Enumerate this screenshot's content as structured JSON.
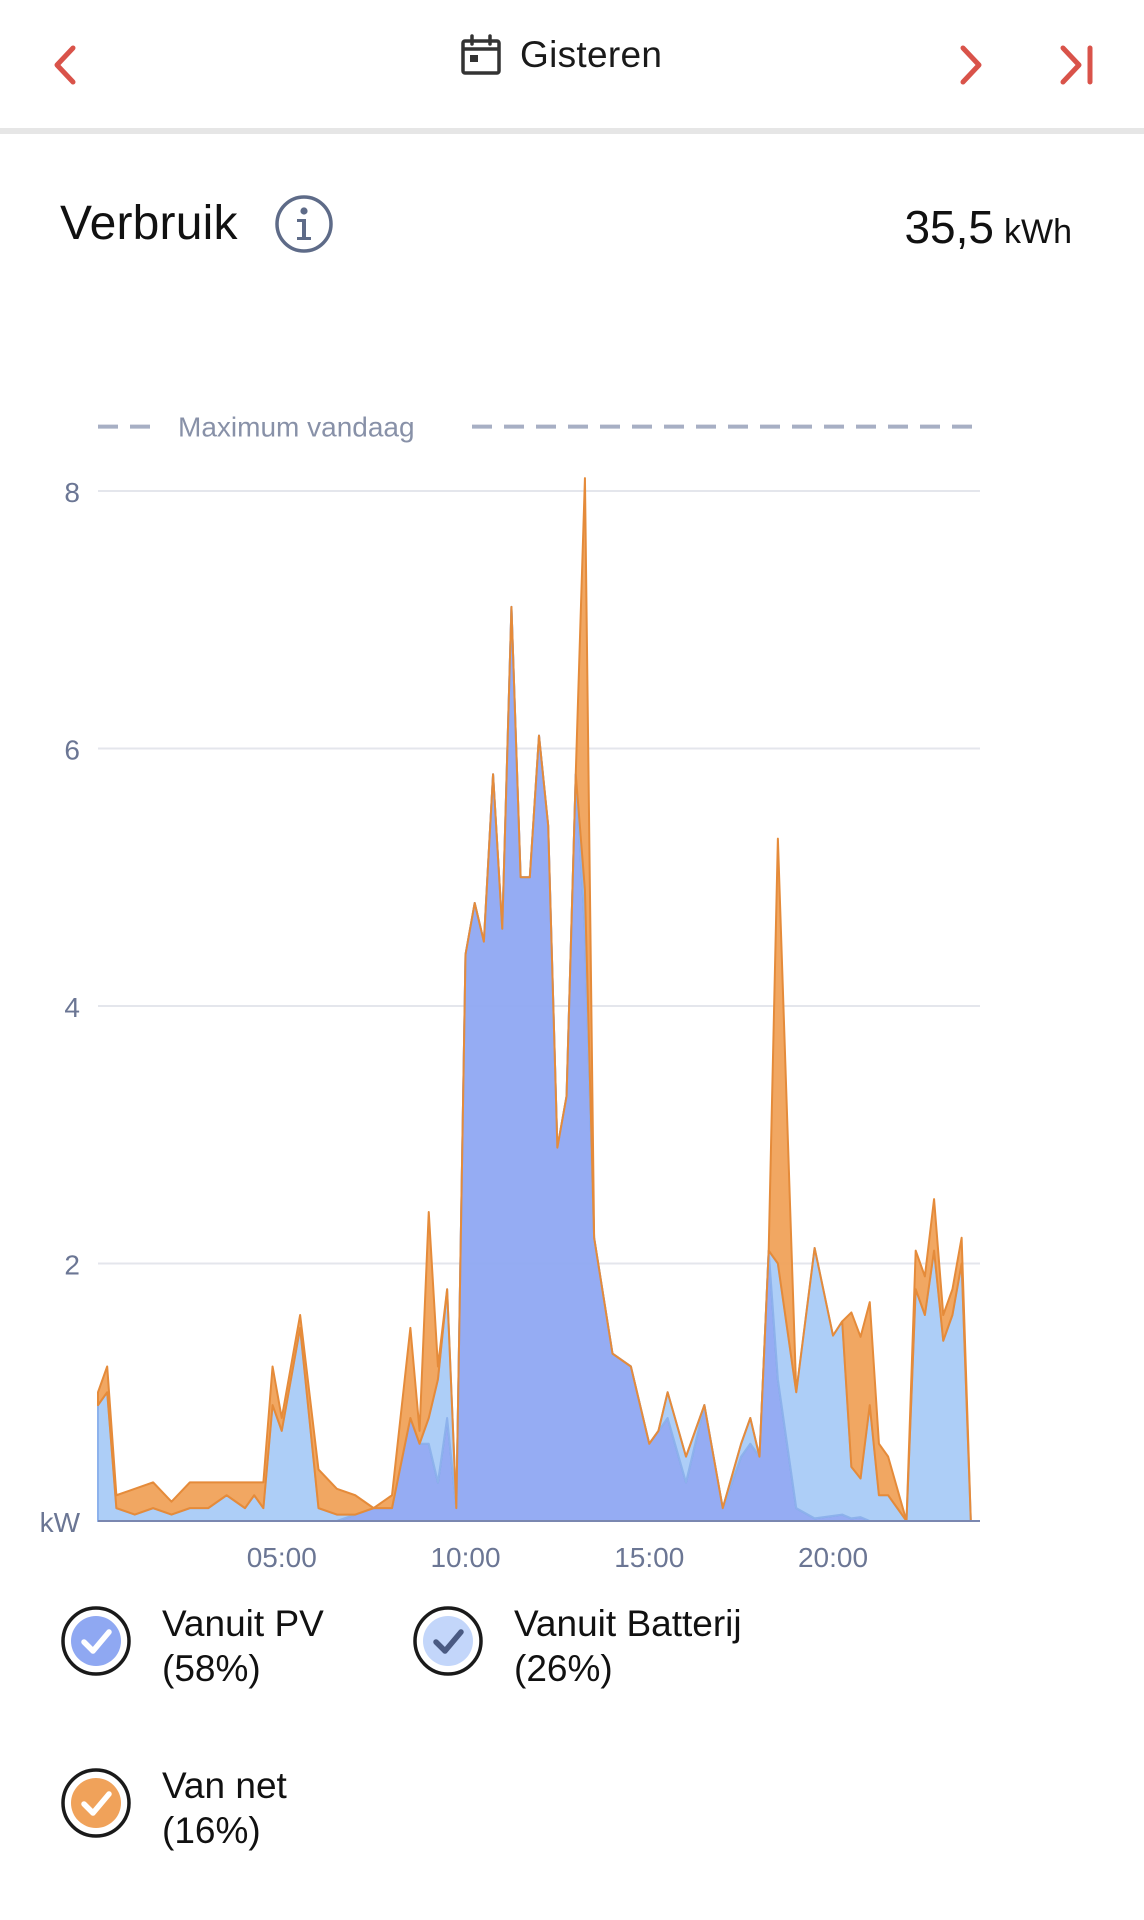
{
  "header": {
    "date_label": "Gisteren",
    "accent_color": "#d9534a"
  },
  "summary": {
    "title": "Verbruik",
    "total_value": "35,5",
    "total_unit": "kWh"
  },
  "icons": {
    "prev": "chevron-left-icon",
    "next": "chevron-right-icon",
    "last": "skip-to-last-icon",
    "calendar": "calendar-icon",
    "info": "info-icon",
    "check": "checkmark-icon"
  },
  "chart_data": {
    "type": "area",
    "title": "",
    "xlabel": "",
    "ylabel": "kW",
    "xlim": [
      0,
      24
    ],
    "ylim": [
      0,
      8
    ],
    "x_ticks": [
      {
        "value": 5,
        "label": "05:00"
      },
      {
        "value": 10,
        "label": "10:00"
      },
      {
        "value": 15,
        "label": "15:00"
      },
      {
        "value": 20,
        "label": "20:00"
      }
    ],
    "y_ticks": [
      {
        "value": 0,
        "label": "kW"
      },
      {
        "value": 2,
        "label": "2"
      },
      {
        "value": 4,
        "label": "4"
      },
      {
        "value": 6,
        "label": "6"
      },
      {
        "value": 8,
        "label": "8"
      }
    ],
    "grid": true,
    "reference_line": {
      "label": "Maximum vandaag",
      "value": 8.5
    },
    "x": [
      0,
      0.25,
      0.5,
      1,
      1.5,
      2,
      2.5,
      3,
      3.5,
      4,
      4.25,
      4.5,
      4.75,
      5,
      5.5,
      6,
      6.5,
      7,
      7.5,
      8,
      8.5,
      8.75,
      9,
      9.25,
      9.5,
      9.75,
      10,
      10.25,
      10.5,
      10.75,
      11,
      11.25,
      11.5,
      11.75,
      12,
      12.25,
      12.5,
      12.75,
      13,
      13.25,
      13.5,
      14,
      14.5,
      15,
      15.25,
      15.5,
      16,
      16.5,
      17,
      17.5,
      17.75,
      18,
      18.25,
      18.5,
      19,
      19.5,
      20,
      20.25,
      20.5,
      20.75,
      21,
      21.25,
      21.5,
      22,
      22.25,
      22.5,
      22.75,
      23,
      23.25,
      23.5,
      23.75
    ],
    "series": [
      {
        "name": "Vanuit PV",
        "percent": "(58%)",
        "color": "#8fa8f2",
        "values": [
          0,
          0,
          0,
          0,
          0,
          0,
          0,
          0,
          0,
          0,
          0,
          0,
          0,
          0,
          0,
          0,
          0,
          0.05,
          0.1,
          0.1,
          0.8,
          0.6,
          0.6,
          0.3,
          0.8,
          0.1,
          4.4,
          4.8,
          4.5,
          5.8,
          4.6,
          7.1,
          5.0,
          5.0,
          6.1,
          5.4,
          2.9,
          3.3,
          5.8,
          4.6,
          2.2,
          1.3,
          1.2,
          0.6,
          0.7,
          0.8,
          0.3,
          0.9,
          0.1,
          0.5,
          0.6,
          0.5,
          2.1,
          1.1,
          0.1,
          0.02,
          0.04,
          0.05,
          0.02,
          0.03,
          0,
          0,
          0,
          0,
          0,
          0,
          0,
          0,
          0,
          0,
          0
        ]
      },
      {
        "name": "Vanuit Batterij",
        "percent": "(26%)",
        "color": "#a9cbf7",
        "values": [
          0.9,
          1.0,
          0.1,
          0.05,
          0.1,
          0.05,
          0.1,
          0.1,
          0.2,
          0.1,
          0.2,
          0.1,
          0.9,
          0.7,
          1.5,
          0.1,
          0.05,
          0,
          0,
          0,
          0,
          0,
          0.2,
          0.8,
          1.0,
          0,
          0,
          0,
          0,
          0,
          0,
          0,
          0,
          0,
          0,
          0,
          0,
          0,
          0,
          0.3,
          0,
          0,
          0,
          0,
          0,
          0.2,
          0.2,
          0,
          0,
          0.1,
          0.2,
          0,
          0,
          0.9,
          0.9,
          2.1,
          1.4,
          1.5,
          0.4,
          0.3,
          0.9,
          0.2,
          0.2,
          0,
          1.8,
          1.6,
          2.1,
          1.4,
          1.6,
          2.0,
          0
        ]
      },
      {
        "name": "Van net",
        "percent": "(16%)",
        "color": "#f0a25a",
        "values": [
          0.1,
          0.2,
          0.1,
          0.2,
          0.2,
          0.1,
          0.2,
          0.2,
          0.1,
          0.2,
          0.1,
          0.2,
          0.3,
          0.1,
          0.1,
          0.3,
          0.2,
          0.15,
          0,
          0.1,
          0.7,
          0.1,
          1.6,
          0.1,
          0,
          0,
          0,
          0,
          0,
          0,
          0,
          0,
          0,
          0,
          0,
          0,
          0,
          0,
          0,
          3.2,
          0,
          0,
          0,
          0,
          0,
          0,
          0,
          0,
          0,
          0,
          0,
          0,
          0,
          3.3,
          0,
          0,
          0,
          0,
          1.2,
          1.1,
          0.8,
          0.4,
          0.3,
          0,
          0.3,
          0.3,
          0.4,
          0.2,
          0.2,
          0.2,
          0
        ]
      }
    ]
  },
  "legend": {
    "items": [
      {
        "label": "Vanuit PV",
        "percent": "(58%)"
      },
      {
        "label": "Vanuit Batterij",
        "percent": "(26%)"
      },
      {
        "label": "Van net",
        "percent": "(16%)"
      }
    ]
  }
}
